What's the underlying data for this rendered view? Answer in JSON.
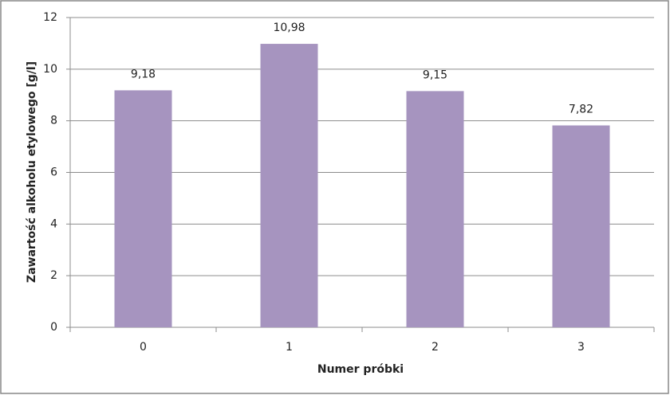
{
  "chart_data": {
    "type": "bar",
    "x_label": "Numer próbki",
    "y_label": "Zawartość alkoholu etylowego [g/l]",
    "categories": [
      "0",
      "1",
      "2",
      "3"
    ],
    "values": [
      9.18,
      10.98,
      9.15,
      7.82
    ],
    "value_labels": [
      "9,18",
      "10,98",
      "9,15",
      "7,82"
    ],
    "color": "#a694bf",
    "ylim": [
      0,
      12
    ],
    "yticks": [
      0,
      2,
      4,
      6,
      8,
      10,
      12
    ],
    "grid": true
  }
}
